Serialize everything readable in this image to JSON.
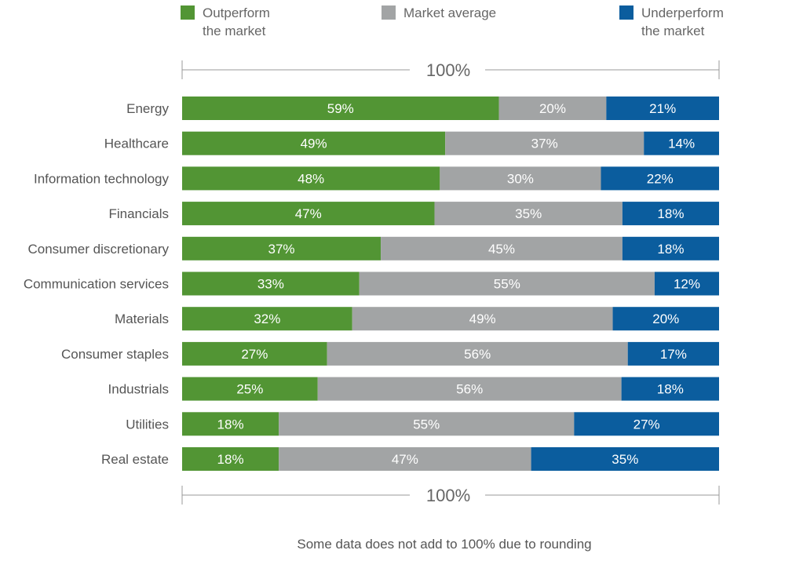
{
  "chart_data": {
    "type": "bar",
    "orientation": "horizontal",
    "stacked": true,
    "categories": [
      "Energy",
      "Healthcare",
      "Information technology",
      "Financials",
      "Consumer discretionary",
      "Communication services",
      "Materials",
      "Consumer staples",
      "Industrials",
      "Utilities",
      "Real estate"
    ],
    "series": [
      {
        "name": "Outperform\nthe market",
        "color": "#529534",
        "values": [
          59,
          49,
          48,
          47,
          37,
          33,
          32,
          27,
          25,
          18,
          18
        ]
      },
      {
        "name": "Market average",
        "color": "#a2a4a5",
        "values": [
          20,
          37,
          30,
          35,
          45,
          55,
          49,
          56,
          56,
          55,
          47
        ]
      },
      {
        "name": "Underperform\nthe market",
        "color": "#0b5d9e",
        "values": [
          21,
          14,
          22,
          18,
          18,
          12,
          20,
          17,
          18,
          27,
          35
        ]
      }
    ],
    "value_suffix": "%",
    "scale_label": "100%",
    "title": "",
    "xlabel": "",
    "ylabel": "",
    "legend_position": "top"
  },
  "footnote": "Some data does not add to 100% due to rounding"
}
